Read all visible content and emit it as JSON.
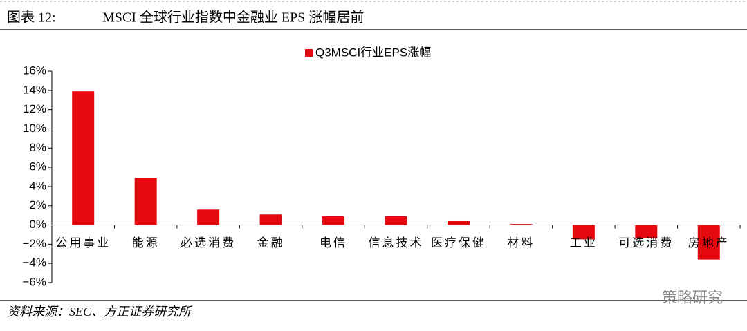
{
  "chart_data": {
    "type": "bar",
    "figure_label": "图表 12:",
    "title": "MSCI 全球行业指数中金融业 EPS 涨幅居前",
    "categories": [
      "公用事业",
      "能源",
      "必选消费",
      "金融",
      "电信",
      "信息技术",
      "医疗保健",
      "材料",
      "工业",
      "可选消费",
      "房地产"
    ],
    "series": [
      {
        "name": "Q3MSCI行业EPS涨幅",
        "color": "#e3090f",
        "values": [
          13.9,
          4.9,
          1.6,
          1.1,
          0.9,
          0.9,
          0.4,
          0.1,
          -1.5,
          -1.4,
          -3.6
        ]
      }
    ],
    "ylim": [
      -6,
      16
    ],
    "yticks": [
      {
        "value": -6,
        "label": "−6%"
      },
      {
        "value": -4,
        "label": "−4%"
      },
      {
        "value": -2,
        "label": "−2%"
      },
      {
        "value": 0,
        "label": "0%"
      },
      {
        "value": 2,
        "label": "2%"
      },
      {
        "value": 4,
        "label": "4%"
      },
      {
        "value": 6,
        "label": "6%"
      },
      {
        "value": 8,
        "label": "8%"
      },
      {
        "value": 10,
        "label": "10%"
      },
      {
        "value": 12,
        "label": "12%"
      },
      {
        "value": 14,
        "label": "14%"
      },
      {
        "value": 16,
        "label": "16%"
      }
    ],
    "grid": false,
    "legend": "top",
    "source": "资料来源：SEC、方正证券研究所",
    "watermark": "策略研究"
  }
}
